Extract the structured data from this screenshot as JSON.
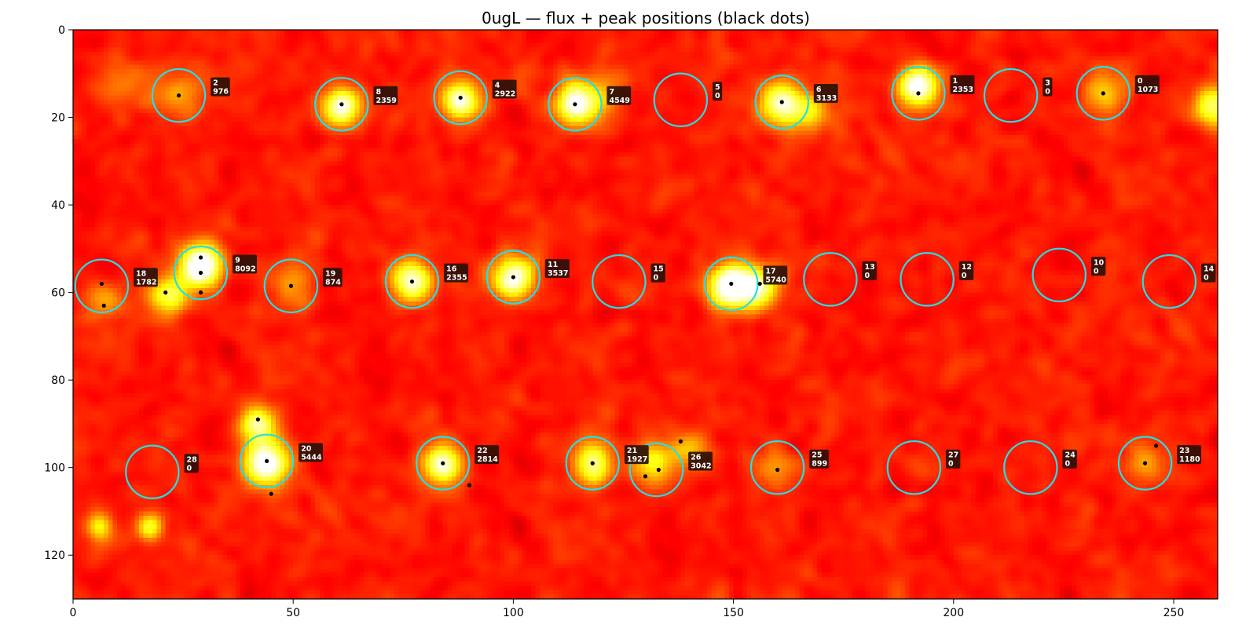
{
  "chart_data": {
    "type": "heatmap",
    "title": "0ugL — flux + peak positions (black dots)",
    "xlabel": "",
    "ylabel": "",
    "xlim": [
      0,
      260
    ],
    "ylim": [
      130,
      0
    ],
    "x_ticks": [
      0,
      50,
      100,
      150,
      200,
      250
    ],
    "y_ticks": [
      0,
      20,
      40,
      60,
      80,
      100,
      120
    ],
    "colormap": "hot",
    "circle_color": "#22e0e6",
    "circle_radius": 6,
    "dot_color": "#000000",
    "spots": [
      {
        "id": "0",
        "flux": "1073",
        "x": 234,
        "y": 14.5
      },
      {
        "id": "1",
        "flux": "2353",
        "x": 192,
        "y": 14.5
      },
      {
        "id": "2",
        "flux": "976",
        "x": 24,
        "y": 15
      },
      {
        "id": "3",
        "flux": "0",
        "x": 213,
        "y": 15
      },
      {
        "id": "4",
        "flux": "2922",
        "x": 88,
        "y": 15.5
      },
      {
        "id": "5",
        "flux": "0",
        "x": 138,
        "y": 16
      },
      {
        "id": "6",
        "flux": "3133",
        "x": 161,
        "y": 16.5
      },
      {
        "id": "7",
        "flux": "4549",
        "x": 114,
        "y": 17
      },
      {
        "id": "8",
        "flux": "2359",
        "x": 61,
        "y": 17
      },
      {
        "id": "9",
        "flux": "8092",
        "x": 29,
        "y": 55.5
      },
      {
        "id": "10",
        "flux": "0",
        "x": 224,
        "y": 56
      },
      {
        "id": "11",
        "flux": "3537",
        "x": 100,
        "y": 56.5
      },
      {
        "id": "12",
        "flux": "0",
        "x": 194,
        "y": 57
      },
      {
        "id": "13",
        "flux": "0",
        "x": 172,
        "y": 57
      },
      {
        "id": "14",
        "flux": "0",
        "x": 249,
        "y": 57.5
      },
      {
        "id": "15",
        "flux": "0",
        "x": 124,
        "y": 57.5
      },
      {
        "id": "16",
        "flux": "2355",
        "x": 77,
        "y": 57.5
      },
      {
        "id": "17",
        "flux": "5740",
        "x": 149.5,
        "y": 58
      },
      {
        "id": "18",
        "flux": "1782",
        "x": 6.5,
        "y": 58.5
      },
      {
        "id": "19",
        "flux": "874",
        "x": 49.5,
        "y": 58.5
      },
      {
        "id": "20",
        "flux": "5444",
        "x": 44,
        "y": 98.5
      },
      {
        "id": "21",
        "flux": "1927",
        "x": 118,
        "y": 99
      },
      {
        "id": "22",
        "flux": "2814",
        "x": 84,
        "y": 99
      },
      {
        "id": "23",
        "flux": "1180",
        "x": 243.5,
        "y": 99
      },
      {
        "id": "24",
        "flux": "0",
        "x": 217.5,
        "y": 100
      },
      {
        "id": "25",
        "flux": "899",
        "x": 160,
        "y": 100
      },
      {
        "id": "26",
        "flux": "3042",
        "x": 132.5,
        "y": 100.5
      },
      {
        "id": "27",
        "flux": "0",
        "x": 191,
        "y": 100
      },
      {
        "id": "28",
        "flux": "0",
        "x": 18,
        "y": 101
      }
    ],
    "peaks": [
      [
        24,
        15
      ],
      [
        61,
        17
      ],
      [
        88,
        15.5
      ],
      [
        114,
        17
      ],
      [
        161,
        16.5
      ],
      [
        192,
        14.5
      ],
      [
        234,
        14.5
      ],
      [
        6.5,
        58
      ],
      [
        7,
        63
      ],
      [
        21,
        60
      ],
      [
        29,
        52
      ],
      [
        29,
        55.5
      ],
      [
        29,
        60
      ],
      [
        49.5,
        58.5
      ],
      [
        77,
        57.5
      ],
      [
        100,
        56.5
      ],
      [
        149.5,
        58
      ],
      [
        156,
        58
      ],
      [
        42,
        89
      ],
      [
        44,
        98.5
      ],
      [
        45,
        106
      ],
      [
        84,
        99
      ],
      [
        90,
        104
      ],
      [
        118,
        99
      ],
      [
        130,
        102
      ],
      [
        133,
        100.5
      ],
      [
        138,
        94
      ],
      [
        160,
        100.5
      ],
      [
        243.5,
        99
      ],
      [
        246,
        95
      ]
    ],
    "blobs": [
      {
        "x": 61,
        "y": 17.5,
        "a": 1.4,
        "s": 3.2
      },
      {
        "x": 88,
        "y": 16,
        "a": 1.3,
        "s": 3.2
      },
      {
        "x": 114,
        "y": 17,
        "a": 1.5,
        "s": 3.3
      },
      {
        "x": 120,
        "y": 15,
        "a": 0.5,
        "s": 3.5
      },
      {
        "x": 161,
        "y": 17,
        "a": 1.4,
        "s": 3.4
      },
      {
        "x": 168,
        "y": 18.5,
        "a": 0.6,
        "s": 3.2
      },
      {
        "x": 192,
        "y": 13,
        "a": 1.6,
        "s": 3.2
      },
      {
        "x": 234,
        "y": 14.5,
        "a": 0.7,
        "s": 3.4
      },
      {
        "x": 24,
        "y": 15,
        "a": 0.5,
        "s": 3.5
      },
      {
        "x": 12,
        "y": 12,
        "a": 0.35,
        "s": 4
      },
      {
        "x": 259,
        "y": 17.5,
        "a": 1.1,
        "s": 3.2
      },
      {
        "x": 29,
        "y": 54,
        "a": 1.8,
        "s": 3.4
      },
      {
        "x": 22,
        "y": 60.5,
        "a": 1.0,
        "s": 3.2
      },
      {
        "x": 7,
        "y": 62,
        "a": 0.5,
        "s": 3
      },
      {
        "x": 49.5,
        "y": 58.5,
        "a": 0.55,
        "s": 3.2
      },
      {
        "x": 77,
        "y": 57.5,
        "a": 1.3,
        "s": 3.3
      },
      {
        "x": 100,
        "y": 56.5,
        "a": 1.5,
        "s": 3.3
      },
      {
        "x": 149.5,
        "y": 58.5,
        "a": 1.8,
        "s": 3.5
      },
      {
        "x": 156,
        "y": 59,
        "a": 1.1,
        "s": 3.2
      },
      {
        "x": 42,
        "y": 90,
        "a": 1.1,
        "s": 3
      },
      {
        "x": 44,
        "y": 99,
        "a": 1.6,
        "s": 3.5
      },
      {
        "x": 84,
        "y": 99,
        "a": 1.3,
        "s": 3.2
      },
      {
        "x": 118,
        "y": 99,
        "a": 1.2,
        "s": 3.2
      },
      {
        "x": 132,
        "y": 99,
        "a": 0.9,
        "s": 3.6
      },
      {
        "x": 140,
        "y": 96,
        "a": 0.5,
        "s": 3
      },
      {
        "x": 160,
        "y": 100.5,
        "a": 0.45,
        "s": 3.2
      },
      {
        "x": 244,
        "y": 99,
        "a": 0.55,
        "s": 3.4
      },
      {
        "x": 6,
        "y": 113.5,
        "a": 0.8,
        "s": 2.2
      },
      {
        "x": 17.5,
        "y": 113.5,
        "a": 0.9,
        "s": 2.2
      }
    ]
  }
}
